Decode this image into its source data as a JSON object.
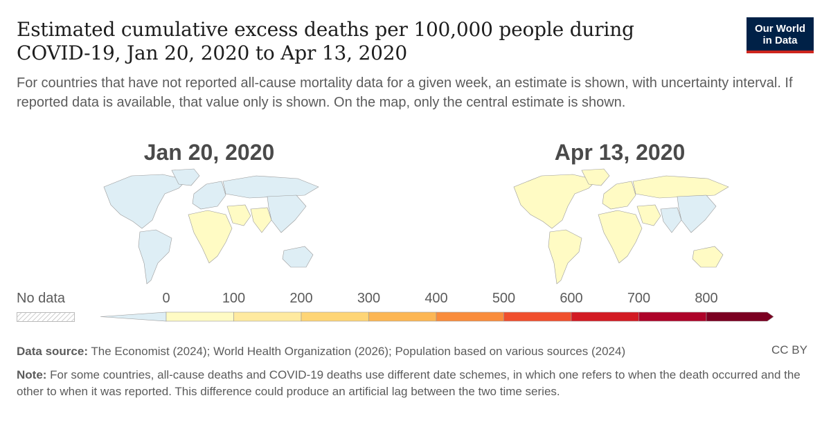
{
  "header": {
    "title": "Estimated cumulative excess deaths per 100,000 people during COVID-19, Jan 20, 2020 to Apr 13, 2020",
    "subtitle": "For countries that have not reported all-cause mortality data for a given week, an estimate is shown, with uncertainty interval. If reported data is available, that value only is shown. On the map, only the central estimate is shown.",
    "logo_line1": "Our World",
    "logo_line2": "in Data"
  },
  "maps": [
    {
      "label": "Jan 20, 2020",
      "dominant_bin": 0,
      "africa_bin": 1,
      "regions": {
        "americas": 0,
        "europe": 0,
        "russia": 0,
        "africa": 1,
        "middle_east": 1,
        "south_asia": 1,
        "east_asia": 0,
        "australia": 0
      }
    },
    {
      "label": "Apr 13, 2020",
      "dominant_bin": 1,
      "regions": {
        "americas": 1,
        "europe": 1,
        "russia": 1,
        "africa": 1,
        "middle_east": 1,
        "south_asia": 0,
        "east_asia": 0,
        "australia": 1
      }
    }
  ],
  "legend": {
    "no_data_label": "No data",
    "ticks": [
      "0",
      "100",
      "200",
      "300",
      "400",
      "500",
      "600",
      "700",
      "800"
    ],
    "colors": [
      "#deeef5",
      "#fffbc4",
      "#ffeaa0",
      "#fed576",
      "#fcb654",
      "#f98c3c",
      "#f04f2d",
      "#d21a23",
      "#ad0329",
      "#7b0021"
    ]
  },
  "footer": {
    "source_label": "Data source:",
    "source_text": " The Economist (2024); World Health Organization (2026); Population based on various sources (2024)",
    "license": "CC BY",
    "note_label": "Note:",
    "note_text": " For some countries, all-cause deaths and COVID-19 deaths use different date schemes, in which one refers to when the death occurred and the other to when it was reported. This difference could produce an artificial lag between the two time series."
  }
}
